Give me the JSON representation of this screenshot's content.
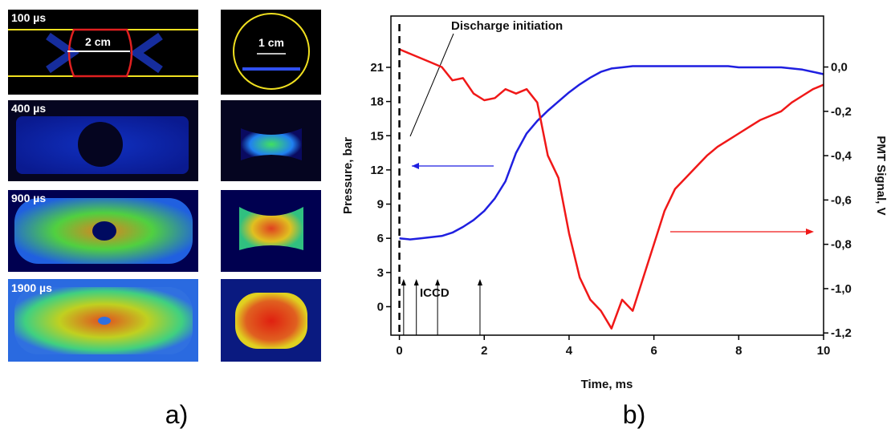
{
  "panel_a": {
    "images": [
      {
        "label": "100 µs",
        "scale": "2 cm",
        "scale_side": "1 cm"
      },
      {
        "label": "400 µs"
      },
      {
        "label": "900 µs"
      },
      {
        "label": "1900 µs"
      }
    ],
    "caption": "a)"
  },
  "chart_data": {
    "type": "line",
    "caption": "b)",
    "xlabel": "Time, ms",
    "ylabel": "Pressure, bar",
    "y2label": "PMT Signal, V",
    "annotations": {
      "initiation": "Discharge initiation",
      "iccd": "ICCD"
    },
    "initiation_time": 0,
    "iccd_times": [
      0.1,
      0.4,
      0.9,
      1.9
    ],
    "xlim": [
      -0.2,
      10
    ],
    "xticks": [
      0,
      2,
      4,
      6,
      8,
      10
    ],
    "ylim": [
      -2.5,
      25.5
    ],
    "yticks": [
      0,
      3,
      6,
      9,
      12,
      15,
      18,
      21
    ],
    "y2lim": [
      -1.21,
      0.23
    ],
    "y2ticks": [
      {
        "value": 0,
        "label": "0,0"
      },
      {
        "value": -0.2,
        "label": "-0,2"
      },
      {
        "value": -0.4,
        "label": "-0,4"
      },
      {
        "value": -0.6,
        "label": "-0,6"
      },
      {
        "value": -0.8,
        "label": "-0,8"
      },
      {
        "value": -1.0,
        "label": "-1,0"
      },
      {
        "value": -1.2,
        "label": "-1,2"
      }
    ],
    "x": [
      0,
      0.25,
      0.5,
      0.75,
      1,
      1.25,
      1.5,
      1.75,
      2,
      2.25,
      2.5,
      2.75,
      3,
      3.25,
      3.5,
      3.75,
      4,
      4.25,
      4.5,
      4.75,
      5,
      5.25,
      5.5,
      5.75,
      6,
      6.25,
      6.5,
      6.75,
      7,
      7.25,
      7.5,
      7.75,
      8,
      8.25,
      8.5,
      8.75,
      9,
      9.25,
      9.5,
      9.75,
      10
    ],
    "series": [
      {
        "color": "#1f1fe0",
        "axis": "y",
        "values": [
          6.0,
          5.9,
          6.0,
          6.1,
          6.2,
          6.5,
          7.0,
          7.6,
          8.4,
          9.5,
          11.0,
          13.5,
          15.2,
          16.3,
          17.2,
          18.0,
          18.8,
          19.5,
          20.1,
          20.6,
          20.9,
          21.0,
          21.1,
          21.1,
          21.1,
          21.1,
          21.1,
          21.1,
          21.1,
          21.1,
          21.1,
          21.1,
          21.0,
          21.0,
          21.0,
          21.0,
          21.0,
          20.9,
          20.8,
          20.6,
          20.4
        ]
      },
      {
        "color": "#f01818",
        "axis": "y2",
        "values": [
          0.08,
          0.06,
          0.04,
          0.02,
          0.0,
          -0.06,
          -0.05,
          -0.12,
          -0.15,
          -0.14,
          -0.1,
          -0.12,
          -0.1,
          -0.16,
          -0.4,
          -0.5,
          -0.75,
          -0.95,
          -1.05,
          -1.1,
          -1.18,
          -1.05,
          -1.1,
          -0.95,
          -0.8,
          -0.65,
          -0.55,
          -0.5,
          -0.45,
          -0.4,
          -0.36,
          -0.33,
          -0.3,
          -0.27,
          -0.24,
          -0.22,
          -0.2,
          -0.16,
          -0.13,
          -0.1,
          -0.08
        ]
      }
    ]
  }
}
